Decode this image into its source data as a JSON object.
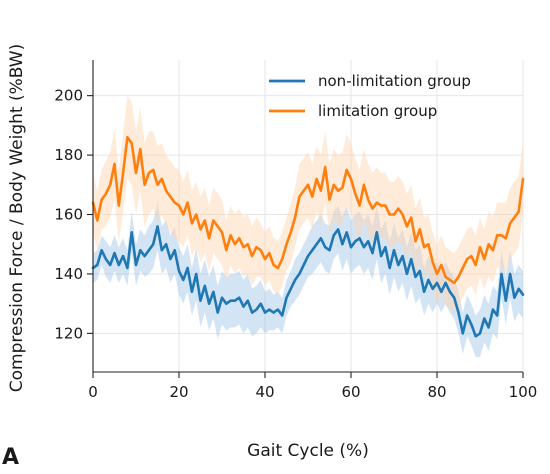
{
  "panel_label": "A",
  "chart_data": {
    "type": "line",
    "xlabel": "Gait Cycle (%)",
    "ylabel": "Compression Force / Body Weight (%BW)",
    "xlim": [
      0,
      100
    ],
    "ylim": [
      107,
      212
    ],
    "xticks": [
      0,
      20,
      40,
      60,
      80,
      100
    ],
    "yticks": [
      120,
      140,
      160,
      180,
      200
    ],
    "grid": true,
    "legend_position": "top-right",
    "series": [
      {
        "name": "non-limitation group",
        "color": "#1f77b4",
        "band_color": "#9ec5e8",
        "x": [
          0,
          1,
          2,
          3,
          4,
          5,
          6,
          7,
          8,
          9,
          10,
          11,
          12,
          13,
          14,
          15,
          16,
          17,
          18,
          19,
          20,
          21,
          22,
          23,
          24,
          25,
          26,
          27,
          28,
          29,
          30,
          31,
          32,
          33,
          34,
          35,
          36,
          37,
          38,
          39,
          40,
          41,
          42,
          43,
          44,
          45,
          46,
          47,
          48,
          49,
          50,
          51,
          52,
          53,
          54,
          55,
          56,
          57,
          58,
          59,
          60,
          61,
          62,
          63,
          64,
          65,
          66,
          67,
          68,
          69,
          70,
          71,
          72,
          73,
          74,
          75,
          76,
          77,
          78,
          79,
          80,
          81,
          82,
          83,
          84,
          85,
          86,
          87,
          88,
          89,
          90,
          91,
          92,
          93,
          94,
          95,
          96,
          97,
          98,
          99,
          100
        ],
        "values": [
          142,
          143,
          148,
          145,
          143,
          147,
          143,
          146,
          142,
          154,
          143,
          148,
          146,
          148,
          150,
          156,
          148,
          150,
          145,
          148,
          141,
          138,
          142,
          134,
          140,
          131,
          136,
          130,
          134,
          127,
          132,
          130,
          131,
          131,
          132,
          129,
          131,
          127,
          128,
          130,
          127,
          128,
          127,
          128,
          126,
          132,
          135,
          138,
          140,
          143,
          146,
          148,
          150,
          152,
          149,
          148,
          153,
          155,
          150,
          154,
          149,
          151,
          152,
          149,
          151,
          147,
          154,
          146,
          149,
          142,
          148,
          143,
          146,
          140,
          145,
          139,
          141,
          134,
          138,
          135,
          137,
          134,
          137,
          134,
          132,
          127,
          120,
          126,
          123,
          119,
          120,
          125,
          122,
          128,
          126,
          140,
          131,
          140,
          132,
          135,
          133
        ],
        "band_half_width": [
          5,
          5,
          5,
          6,
          6,
          6,
          6,
          6,
          6,
          7,
          7,
          7,
          7,
          8,
          8,
          8,
          8,
          8,
          8,
          8,
          8,
          8,
          8,
          8,
          9,
          9,
          9,
          9,
          9,
          9,
          9,
          9,
          9,
          9,
          9,
          9,
          9,
          8,
          8,
          8,
          7,
          7,
          6,
          6,
          6,
          6,
          6,
          7,
          7,
          7,
          7,
          8,
          8,
          8,
          8,
          8,
          8,
          8,
          9,
          9,
          9,
          9,
          9,
          9,
          9,
          9,
          9,
          9,
          9,
          9,
          9,
          9,
          9,
          9,
          9,
          9,
          9,
          8,
          8,
          8,
          7,
          7,
          7,
          7,
          7,
          7,
          7,
          7,
          7,
          7,
          8,
          8,
          8,
          8,
          8,
          8,
          8,
          8,
          8,
          8,
          8
        ]
      },
      {
        "name": "limitation group",
        "color": "#ff7f0e",
        "band_color": "#ffd2ad",
        "x": [
          0,
          1,
          2,
          3,
          4,
          5,
          6,
          7,
          8,
          9,
          10,
          11,
          12,
          13,
          14,
          15,
          16,
          17,
          18,
          19,
          20,
          21,
          22,
          23,
          24,
          25,
          26,
          27,
          28,
          29,
          30,
          31,
          32,
          33,
          34,
          35,
          36,
          37,
          38,
          39,
          40,
          41,
          42,
          43,
          44,
          45,
          46,
          47,
          48,
          49,
          50,
          51,
          52,
          53,
          54,
          55,
          56,
          57,
          58,
          59,
          60,
          61,
          62,
          63,
          64,
          65,
          66,
          67,
          68,
          69,
          70,
          71,
          72,
          73,
          74,
          75,
          76,
          77,
          78,
          79,
          80,
          81,
          82,
          83,
          84,
          85,
          86,
          87,
          88,
          89,
          90,
          91,
          92,
          93,
          94,
          95,
          96,
          97,
          98,
          99,
          100
        ],
        "values": [
          164,
          158,
          165,
          167,
          170,
          177,
          163,
          174,
          186,
          184,
          174,
          182,
          170,
          174,
          175,
          170,
          172,
          168,
          166,
          164,
          163,
          160,
          164,
          157,
          160,
          155,
          158,
          152,
          158,
          156,
          154,
          148,
          153,
          150,
          152,
          149,
          150,
          146,
          149,
          148,
          145,
          147,
          143,
          142,
          145,
          150,
          154,
          159,
          166,
          168,
          170,
          166,
          172,
          168,
          176,
          165,
          170,
          168,
          169,
          175,
          172,
          167,
          163,
          170,
          165,
          162,
          164,
          163,
          163,
          160,
          160,
          162,
          160,
          156,
          159,
          151,
          155,
          149,
          150,
          144,
          140,
          143,
          139,
          138,
          137,
          139,
          142,
          145,
          146,
          143,
          149,
          145,
          150,
          148,
          153,
          153,
          152,
          157,
          159,
          161,
          172
        ],
        "band_half_width": [
          10,
          10,
          10,
          11,
          11,
          12,
          12,
          13,
          14,
          14,
          14,
          14,
          14,
          14,
          13,
          13,
          12,
          12,
          12,
          12,
          12,
          11,
          11,
          11,
          11,
          11,
          11,
          11,
          11,
          11,
          11,
          10,
          10,
          10,
          10,
          10,
          10,
          10,
          10,
          9,
          9,
          9,
          9,
          9,
          9,
          9,
          10,
          10,
          11,
          11,
          11,
          11,
          11,
          12,
          12,
          12,
          12,
          12,
          12,
          12,
          12,
          12,
          12,
          12,
          12,
          12,
          12,
          11,
          11,
          11,
          11,
          11,
          11,
          11,
          11,
          11,
          11,
          10,
          10,
          10,
          10,
          10,
          10,
          10,
          10,
          10,
          10,
          10,
          10,
          10,
          10,
          10,
          11,
          11,
          11,
          11,
          12,
          12,
          12,
          12,
          12
        ]
      }
    ]
  }
}
